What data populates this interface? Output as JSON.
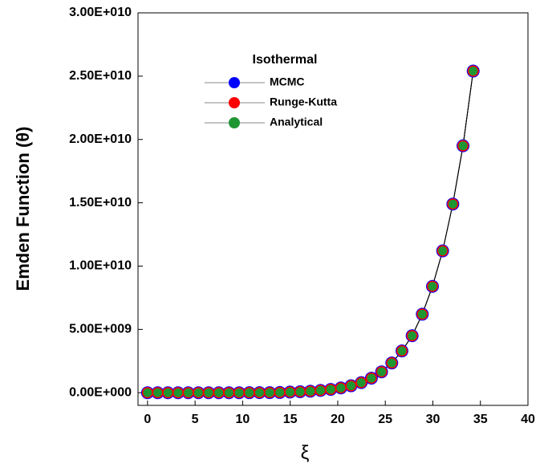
{
  "chart_data": {
    "type": "line",
    "xlabel": "ξ",
    "ylabel": "Emden Function (θ)",
    "legend_title": "Isothermal",
    "x": [
      0,
      1.07,
      2.14,
      3.21,
      4.28,
      5.35,
      6.42,
      7.49,
      8.56,
      9.63,
      10.7,
      11.77,
      12.84,
      13.91,
      14.98,
      16.05,
      17.12,
      18.19,
      19.26,
      20.33,
      21.4,
      22.47,
      23.54,
      24.61,
      25.68,
      26.75,
      27.82,
      28.89,
      29.96,
      31.03,
      32.1,
      33.17,
      34.24
    ],
    "series": [
      {
        "name": "MCMC",
        "color": "#0000ff",
        "values": [
          1,
          10000,
          20000,
          50000,
          100000,
          200000,
          300000,
          500000,
          1000000,
          2000000,
          3000000,
          5000000,
          10000000,
          20000000,
          50000000,
          80000000,
          120000000,
          180000000,
          260000000,
          380000000,
          550000000,
          800000000,
          1150000000,
          1650000000,
          2350000000,
          3300000000,
          4500000000,
          6200000000,
          8400000000,
          11200000000,
          14900000000,
          19500000000,
          25400000000
        ]
      },
      {
        "name": "Runge-Kutta",
        "color": "#ff0000",
        "values": [
          1,
          10000,
          20000,
          50000,
          100000,
          200000,
          300000,
          500000,
          1000000,
          2000000,
          3000000,
          5000000,
          10000000,
          20000000,
          50000000,
          80000000,
          120000000,
          180000000,
          260000000,
          380000000,
          550000000,
          800000000,
          1150000000,
          1650000000,
          2350000000,
          3300000000,
          4500000000,
          6200000000,
          8400000000,
          11200000000,
          14900000000,
          19500000000,
          25400000000
        ]
      },
      {
        "name": "Analytical",
        "color": "#1e9632",
        "values": [
          1,
          10000,
          20000,
          50000,
          100000,
          200000,
          300000,
          500000,
          1000000,
          2000000,
          3000000,
          5000000,
          10000000,
          20000000,
          50000000,
          80000000,
          120000000,
          180000000,
          260000000,
          380000000,
          550000000,
          800000000,
          1150000000,
          1650000000,
          2350000000,
          3300000000,
          4500000000,
          6200000000,
          8400000000,
          11200000000,
          14900000000,
          19500000000,
          25400000000
        ]
      }
    ],
    "xlim": [
      -1,
      40
    ],
    "xticks": [
      0,
      5,
      10,
      15,
      20,
      25,
      30,
      35,
      40
    ],
    "ylim": [
      -1000000000,
      30000000000
    ],
    "yticks": [
      {
        "value": 0,
        "label": "0.00E+000"
      },
      {
        "value": 5000000000,
        "label": "5.00E+009"
      },
      {
        "value": 10000000000,
        "label": "1.00E+010"
      },
      {
        "value": 15000000000,
        "label": "1.50E+010"
      },
      {
        "value": 20000000000,
        "label": "2.00E+010"
      },
      {
        "value": 25000000000,
        "label": "2.50E+010"
      },
      {
        "value": 30000000000,
        "label": "3.00E+010"
      }
    ],
    "line_color": "#000000",
    "grid": false
  }
}
